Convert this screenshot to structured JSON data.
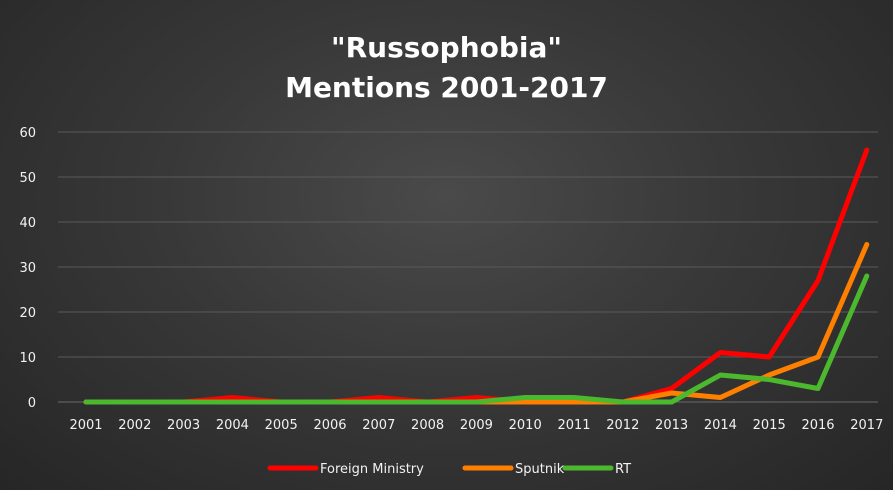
{
  "chart_data": {
    "type": "line",
    "title": "\"Russophobia\"",
    "subtitle": "Mentions 2001-2017",
    "xlabel": "",
    "ylabel": "",
    "categories": [
      "2001",
      "2002",
      "2003",
      "2004",
      "2005",
      "2006",
      "2007",
      "2008",
      "2009",
      "2010",
      "2011",
      "2012",
      "2013",
      "2014",
      "2015",
      "2016",
      "2017"
    ],
    "ylim": [
      0,
      60
    ],
    "yticks": [
      0,
      10,
      20,
      30,
      40,
      50,
      60
    ],
    "grid": true,
    "legend": "bottom",
    "series": [
      {
        "name": "Foreign Ministry",
        "color": "#ff0000",
        "values": [
          0,
          0,
          0,
          1,
          0,
          0,
          1,
          0,
          1,
          0,
          0,
          0,
          3,
          11,
          10,
          27,
          56
        ]
      },
      {
        "name": "Sputnik",
        "color": "#ff7f00",
        "values": [
          0,
          0,
          0,
          0,
          0,
          0,
          0,
          0,
          0,
          0,
          0,
          0,
          2,
          1,
          6,
          10,
          35
        ]
      },
      {
        "name": "RT",
        "color": "#4cb82e",
        "values": [
          0,
          0,
          0,
          0,
          0,
          0,
          0,
          0,
          0,
          1,
          1,
          0,
          0,
          6,
          5,
          3,
          28
        ]
      }
    ]
  }
}
